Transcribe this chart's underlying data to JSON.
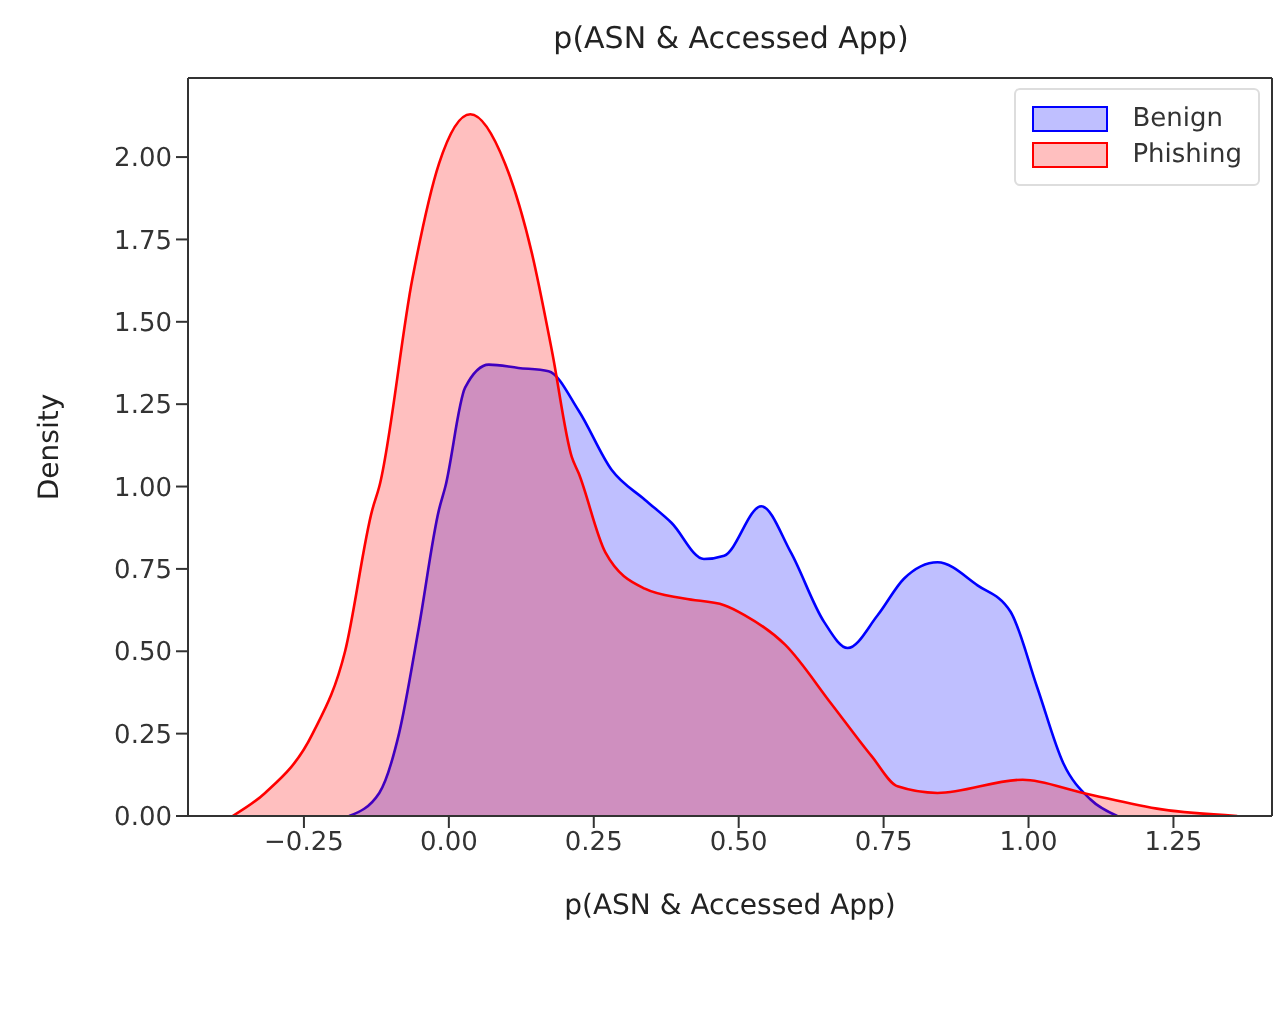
{
  "chart_data": {
    "type": "area",
    "title": "p(ASN & Accessed App)",
    "xlabel": "p(ASN & Accessed App)",
    "ylabel": "Density",
    "series": [
      {
        "name": "Benign",
        "color": "#0000ff",
        "x": [
          -0.172,
          -0.12,
          -0.086,
          -0.052,
          -0.017,
          -0.006,
          0.028,
          0.069,
          0.12,
          0.172,
          0.224,
          0.281,
          0.338,
          0.384,
          0.44,
          0.475,
          0.539,
          0.59,
          0.647,
          0.688,
          0.74,
          0.785,
          0.843,
          0.912,
          0.969,
          1.015,
          1.06,
          1.107,
          1.153
        ],
        "values": [
          0,
          0.07,
          0.25,
          0.57,
          0.93,
          1.0,
          1.3,
          1.37,
          1.36,
          1.35,
          1.23,
          1.05,
          0.96,
          0.89,
          0.78,
          0.79,
          0.94,
          0.8,
          0.59,
          0.51,
          0.61,
          0.72,
          0.77,
          0.7,
          0.62,
          0.39,
          0.16,
          0.05,
          0
        ]
      },
      {
        "name": "Phishing",
        "color": "#ff0000",
        "x": [
          -0.373,
          -0.317,
          -0.235,
          -0.179,
          -0.132,
          -0.12,
          -0.063,
          -0.017,
          0.037,
          0.097,
          0.143,
          0.178,
          0.212,
          0.224,
          0.27,
          0.338,
          0.406,
          0.475,
          0.51,
          0.58,
          0.66,
          0.73,
          0.774,
          0.843,
          0.99,
          1.094,
          1.23,
          1.36
        ],
        "values": [
          0,
          0.07,
          0.25,
          0.5,
          0.93,
          1.0,
          1.63,
          1.98,
          2.13,
          1.98,
          1.71,
          1.41,
          1.09,
          1.04,
          0.8,
          0.69,
          0.66,
          0.64,
          0.61,
          0.52,
          0.34,
          0.18,
          0.09,
          0.07,
          0.11,
          0.07,
          0.02,
          0
        ]
      }
    ],
    "xlim": [
      -0.45,
      1.42
    ],
    "ylim": [
      0,
      2.24
    ],
    "xticks": [
      {
        "value": -0.25,
        "label": "−0.25"
      },
      {
        "value": 0,
        "label": "0.00"
      },
      {
        "value": 0.25,
        "label": "0.25"
      },
      {
        "value": 0.5,
        "label": "0.50"
      },
      {
        "value": 0.75,
        "label": "0.75"
      },
      {
        "value": 1,
        "label": "1.00"
      },
      {
        "value": 1.25,
        "label": "1.25"
      }
    ],
    "yticks": [
      {
        "value": 0,
        "label": "0.00"
      },
      {
        "value": 0.25,
        "label": "0.25"
      },
      {
        "value": 0.5,
        "label": "0.50"
      },
      {
        "value": 0.75,
        "label": "0.75"
      },
      {
        "value": 1,
        "label": "1.00"
      },
      {
        "value": 1.25,
        "label": "1.25"
      },
      {
        "value": 1.5,
        "label": "1.50"
      },
      {
        "value": 1.75,
        "label": "1.75"
      },
      {
        "value": 2,
        "label": "2.00"
      }
    ],
    "grid": false,
    "legend": "top right"
  }
}
